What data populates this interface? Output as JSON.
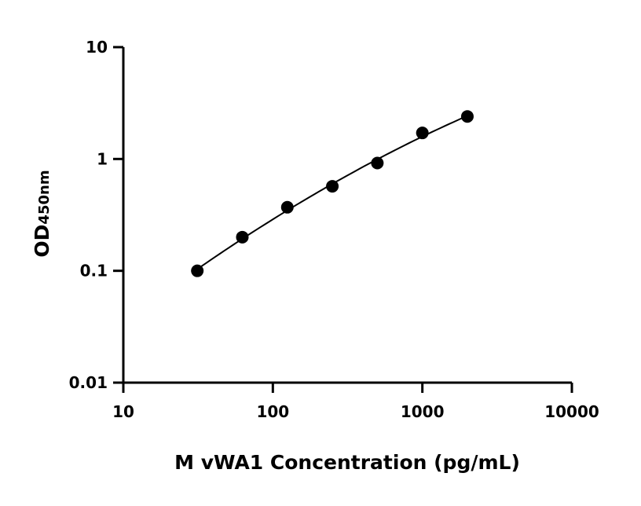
{
  "chart_data": {
    "type": "scatter",
    "title": "",
    "xlabel": "M vWA1 Concentration (pg/mL)",
    "ylabel": "OD",
    "ylabel_sub": "450nm",
    "xscale": "log",
    "yscale": "log",
    "xlim": [
      10,
      10000
    ],
    "ylim": [
      0.01,
      10
    ],
    "x_ticks": [
      "10",
      "100",
      "1000",
      "10000"
    ],
    "y_ticks": [
      "0.01",
      "0.1",
      "1",
      "10"
    ],
    "grid": false,
    "legend": "none",
    "fit_curve": true,
    "color": "#000000",
    "series": [
      {
        "x": [
          31.25,
          62.5,
          125,
          250,
          500,
          1000,
          2000
        ],
        "y": [
          0.1,
          0.2,
          0.37,
          0.57,
          0.92,
          1.71,
          2.4
        ]
      }
    ]
  }
}
